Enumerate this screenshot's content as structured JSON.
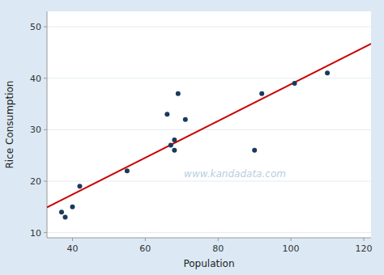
{
  "chart_data": {
    "type": "scatter",
    "xlabel": "Population",
    "ylabel": "Rice Consumption",
    "annotations": [
      "www.kandadata.com"
    ],
    "series": [
      {
        "type": "scatter",
        "marker": "circle",
        "color": "#1a3a5c",
        "x": [
          37,
          38,
          40,
          42,
          55,
          66,
          67,
          68,
          68,
          69,
          71,
          90,
          92,
          101,
          110
        ],
        "values": [
          14,
          13,
          15,
          19,
          22,
          33,
          27,
          26,
          28,
          37,
          32,
          26,
          37,
          39,
          41
        ]
      },
      {
        "type": "line",
        "line_style": "solid",
        "color": "#cc0000",
        "x": [
          33,
          122
        ],
        "values": [
          14.909,
          46.696
        ]
      }
    ],
    "xlim": [
      33,
      122
    ],
    "ylim": [
      9,
      53
    ],
    "xticks": [
      40,
      60,
      80,
      100,
      120
    ],
    "yticks": [
      10,
      20,
      30,
      40,
      50
    ],
    "grid": true
  }
}
